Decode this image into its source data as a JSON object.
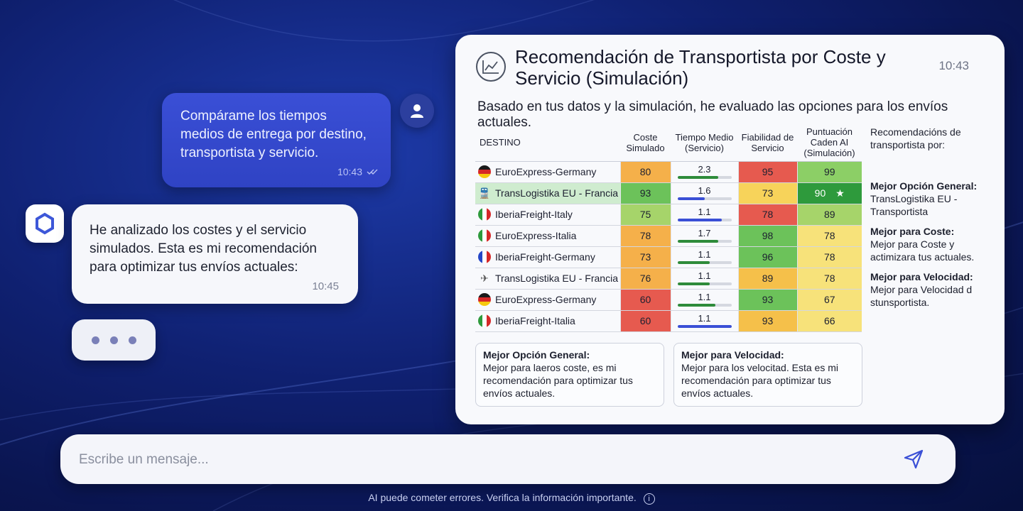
{
  "user_message": {
    "text": "Compárame los tiempos medios de entrega por destino, transportista y servicio.",
    "time": "10:43"
  },
  "ai_message": {
    "text": "He analizado los costes y el servicio simulados. Esta es mi recomendación para optimizar tus envíos actuales:",
    "time": "10:45"
  },
  "card": {
    "title": "Recomendación de Transportista por Coste y Servicio (Simulación)",
    "time": "10:43",
    "subtitle": "Basado en tus datos y la simulación, he evaluado las opciones para los envíos actuales.",
    "headers": {
      "destino": "DESTINO",
      "coste": "Coste Simulado",
      "tiempo": "Tiempo Medio (Servicio)",
      "fiabilidad": "Fiabilidad de Servicio",
      "puntuacion": "Puntuación Caden AI (Simulación)"
    },
    "rows": [
      {
        "icon": "flag-germany",
        "name": "EuroExpress-Germany",
        "coste": "80",
        "tiempo": "2.3",
        "fiab": "95",
        "punt": "99",
        "bar": 0.75,
        "barColor": "#2e8b3a",
        "cColor": "#f5b04a",
        "fColor": "#e65a4f",
        "pColor": "#8ccf66"
      },
      {
        "icon": "train-icon",
        "name": "TransLogistika EU - Francia",
        "coste": "93",
        "tiempo": "1.6",
        "fiab": "73",
        "punt": "90",
        "bar": 0.5,
        "barColor": "#3a4fd6",
        "cColor": "#6cc25a",
        "fColor": "#f7d35a",
        "pColor": "#2e9a3c",
        "highlight": true,
        "star": "★"
      },
      {
        "icon": "flag-italy",
        "name": "IberiaFreight-Italy",
        "coste": "75",
        "tiempo": "1.1",
        "fiab": "78",
        "punt": "89",
        "bar": 0.82,
        "barColor": "#3a4fd6",
        "cColor": "#a6d46a",
        "fColor": "#e65a4f",
        "pColor": "#a6d46a"
      },
      {
        "icon": "flag-italy",
        "name": "EuroExpress-Italia",
        "coste": "78",
        "tiempo": "1.7",
        "fiab": "98",
        "punt": "78",
        "bar": 0.75,
        "barColor": "#2e8b3a",
        "cColor": "#f5b04a",
        "fColor": "#6cc25a",
        "pColor": "#f7e27a"
      },
      {
        "icon": "flag-france",
        "name": "IberiaFreight-Germany",
        "coste": "73",
        "tiempo": "1.1",
        "fiab": "96",
        "punt": "78",
        "bar": 0.6,
        "barColor": "#2e8b3a",
        "cColor": "#f5b04a",
        "fColor": "#6cc25a",
        "pColor": "#f7e27a"
      },
      {
        "icon": "plane-icon",
        "name": "TransLogistika EU - Francia",
        "coste": "76",
        "tiempo": "1.1",
        "fiab": "89",
        "punt": "78",
        "bar": 0.6,
        "barColor": "#2e8b3a",
        "cColor": "#f5b04a",
        "fColor": "#f5c04a",
        "pColor": "#f7e27a"
      },
      {
        "icon": "flag-germany",
        "name": "EuroExpress-Germany",
        "coste": "60",
        "tiempo": "1.1",
        "fiab": "93",
        "punt": "67",
        "bar": 0.7,
        "barColor": "#2e8b3a",
        "cColor": "#e65a4f",
        "fColor": "#6cc25a",
        "pColor": "#f7e27a"
      },
      {
        "icon": "flag-italy",
        "name": "IberiaFreight-Italia",
        "coste": "60",
        "tiempo": "1.1",
        "fiab": "93",
        "punt": "66",
        "bar": 1.0,
        "barColor": "#3a4fd6",
        "cColor": "#e65a4f",
        "fColor": "#f5c04a",
        "pColor": "#f7e27a"
      }
    ],
    "rec_header": "Recomendacións de transportista por:",
    "recs": [
      {
        "title": "Mejor Opción General:",
        "text": "TransLogistika EU - Transportista"
      },
      {
        "title": "Mejor para Coste:",
        "text": "Mejor para Coste y actimizara tus actuales."
      },
      {
        "title": "Mejor para Velocidad:",
        "text": "Mejor para Velocidad d stunsportista."
      }
    ],
    "boxes": [
      {
        "title": "Mejor Opción General:",
        "text": "Mejor para laeros coste, es mi recomendación para optimizar tus envíos actuales."
      },
      {
        "title": "Mejor para Velocidad:",
        "text": "Mejor para los velocitad. Esta es mi recomendación para optimizar tus envíos actuales."
      }
    ]
  },
  "input": {
    "placeholder": "Escribe un mensaje..."
  },
  "disclaimer": "AI puede cometer errores. Verifica la información importante.",
  "info_icon": "i"
}
